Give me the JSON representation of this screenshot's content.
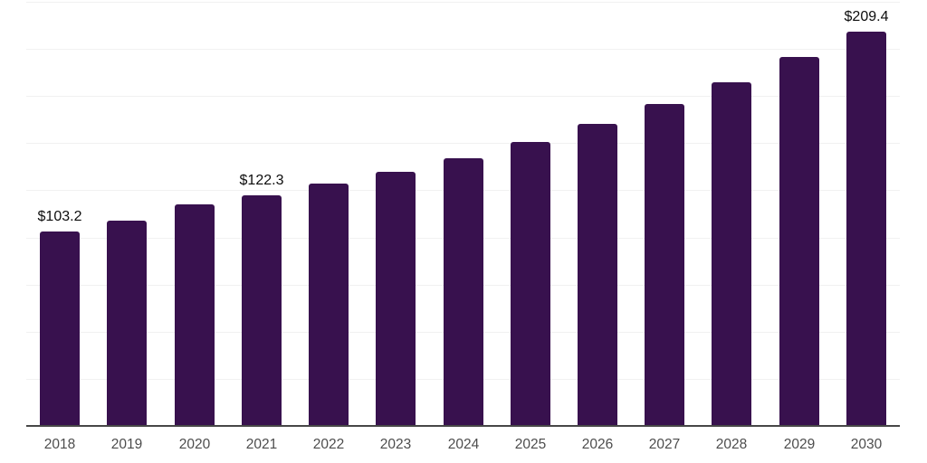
{
  "chart_data": {
    "type": "bar",
    "title": "",
    "xlabel": "",
    "ylabel": "",
    "categories": [
      "2018",
      "2019",
      "2020",
      "2021",
      "2022",
      "2023",
      "2024",
      "2025",
      "2026",
      "2027",
      "2028",
      "2029",
      "2030"
    ],
    "values": [
      103.2,
      108.8,
      117.6,
      122.3,
      128.4,
      134.7,
      142.2,
      150.7,
      160.1,
      170.6,
      182.4,
      195.8,
      209.4
    ],
    "value_labels": {
      "2018": "$103.2",
      "2021": "$122.3",
      "2030": "$209.4"
    },
    "ylim": [
      0,
      225
    ],
    "grid_step": 25,
    "grid": "horizontal",
    "legend_position": "none",
    "colors": {
      "bar": "#38114e",
      "gridline": "#f1f1f1",
      "axis_line": "#474747",
      "tick_label": "#4d4d4d",
      "value_label": "#0d0d0d",
      "background": "#ffffff"
    }
  }
}
